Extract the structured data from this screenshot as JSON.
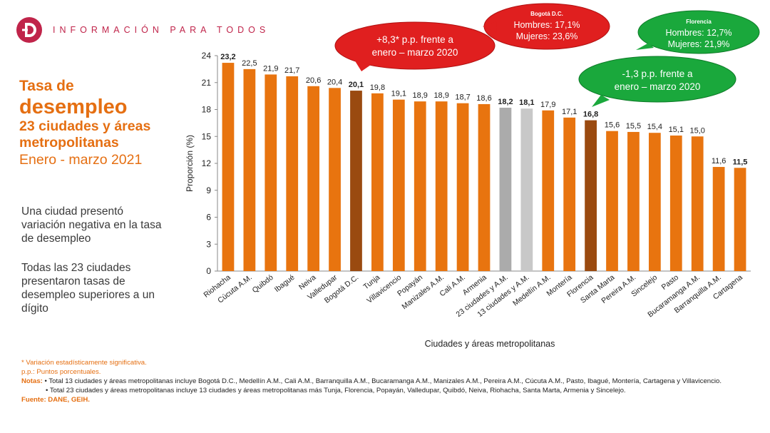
{
  "header": {
    "tagline": "INFORMACIÓN PARA TODOS",
    "logo_icon": "dane-logo",
    "brand_color": "#c0244a"
  },
  "side": {
    "title_line1": "Tasa de",
    "title_line2": "desempleo",
    "title_line3": "23 ciudades y áreas",
    "title_line4": "metropolitanas",
    "period": "Enero - marzo 2021",
    "para1": "Una ciudad presentó variación negativa en la tasa de desempleo",
    "para2": "Todas las 23 ciudades presentaron tasas de desempleo superiores a un dígito"
  },
  "callouts": {
    "bogota_change": {
      "line1": "+8,3* p.p. frente a",
      "line2": "enero – marzo 2020",
      "color": "#e01f1f"
    },
    "bogota_gender": {
      "title": "Bogotá D.C.",
      "line1": "Hombres: 17,1%",
      "line2": "Mujeres: 23,6%",
      "color": "#e01f1f"
    },
    "florencia_gender": {
      "title": "Florencia",
      "line1": "Hombres: 12,7%",
      "line2": "Mujeres: 21,9%",
      "color": "#1aa83c"
    },
    "florencia_change": {
      "line1": "-1,3 p.p. frente a",
      "line2": "enero – marzo 2020",
      "color": "#1aa83c"
    }
  },
  "chart_data": {
    "type": "bar",
    "ylabel": "Proporción (%)",
    "xlabel": "Ciudades y áreas metropolitanas",
    "ylim": [
      0,
      24
    ],
    "yticks": [
      "0",
      "3",
      "6",
      "9",
      "12",
      "15",
      "18",
      "21",
      "24"
    ],
    "grid": false,
    "categories": [
      "Riohacha",
      "Cúcuta A.M.",
      "Quibdó",
      "Ibagué",
      "Neiva",
      "Valledupar",
      "Bogotá D.C.",
      "Tunja",
      "Villavicencio",
      "Popayán",
      "Manizales A.M.",
      "Cali A.M.",
      "Armenia",
      "23 ciudades y A.M.",
      "13 ciudades y A.M.",
      "Medellín A.M.",
      "Montería",
      "Florencia",
      "Santa Marta",
      "Pereira A.M.",
      "Sincelejo",
      "Pasto",
      "Bucaramanga A.M.",
      "Barranquilla A.M.",
      "Cartagena"
    ],
    "values": [
      23.2,
      22.5,
      21.9,
      21.7,
      20.6,
      20.4,
      20.1,
      19.8,
      19.1,
      18.9,
      18.9,
      18.7,
      18.6,
      18.2,
      18.1,
      17.9,
      17.1,
      16.8,
      15.6,
      15.5,
      15.4,
      15.1,
      15.0,
      11.6,
      11.5
    ],
    "labels": [
      "23,2",
      "22,5",
      "21,9",
      "21,7",
      "20,6",
      "20,4",
      "20,1",
      "19,8",
      "19,1",
      "18,9",
      "18,9",
      "18,7",
      "18,6",
      "18,2",
      "18,1",
      "17,9",
      "17,1",
      "16,8",
      "15,6",
      "15,5",
      "15,4",
      "15,1",
      "15,0",
      "11,6",
      "11,5"
    ],
    "bold_labels": [
      "Riohacha",
      "Bogotá D.C.",
      "23 ciudades y A.M.",
      "13 ciudades y A.M.",
      "Florencia",
      "Cartagena"
    ],
    "colors": {
      "default": "#e8740f",
      "highlight": "#9a4a10",
      "aggregate_23": "#ababab",
      "aggregate_13": "#c8c8c8"
    },
    "highlight_categories": [
      "Bogotá D.C.",
      "Florencia"
    ]
  },
  "notes": {
    "asterisk": "* Variación estadísticamente significativa.",
    "pp": "p.p.: Puntos porcentuales.",
    "notas_label": "Notas:",
    "note1": "• Total 13 ciudades y áreas metropolitanas incluye Bogotá D.C., Medellín A.M., Cali A.M., Barranquilla A.M., Bucaramanga A.M., Manizales A.M., Pereira A.M., Cúcuta A.M., Pasto, Ibagué, Montería, Cartagena y Villavicencio.",
    "note2": "• Total 23 ciudades y áreas metropolitanas incluye 13 ciudades y áreas metropolitanas más Tunja, Florencia, Popayán, Valledupar, Quibdó, Neiva, Riohacha, Santa Marta, Armenia y Sincelejo.",
    "source": "Fuente: DANE, GEIH."
  }
}
